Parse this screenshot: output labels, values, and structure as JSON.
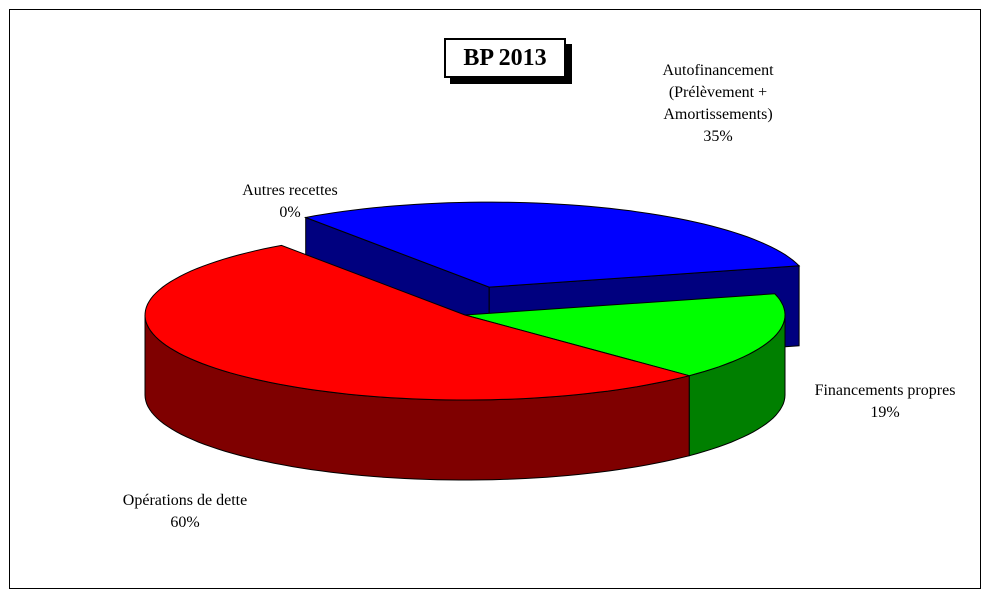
{
  "chart_data": {
    "type": "pie3d",
    "title": "BP 2013",
    "categories": [
      "Autofinancement (Prélèvement + Amortissements)",
      "Financements propres",
      "Opérations de dette",
      "Autres recettes"
    ],
    "values": [
      35,
      19,
      60,
      0
    ],
    "value_labels": [
      "35%",
      "19%",
      "60%",
      "0%"
    ],
    "colors": [
      "#0000ff",
      "#00ff00",
      "#ff0000",
      null
    ],
    "exploded": [
      true,
      false,
      false,
      false
    ]
  }
}
